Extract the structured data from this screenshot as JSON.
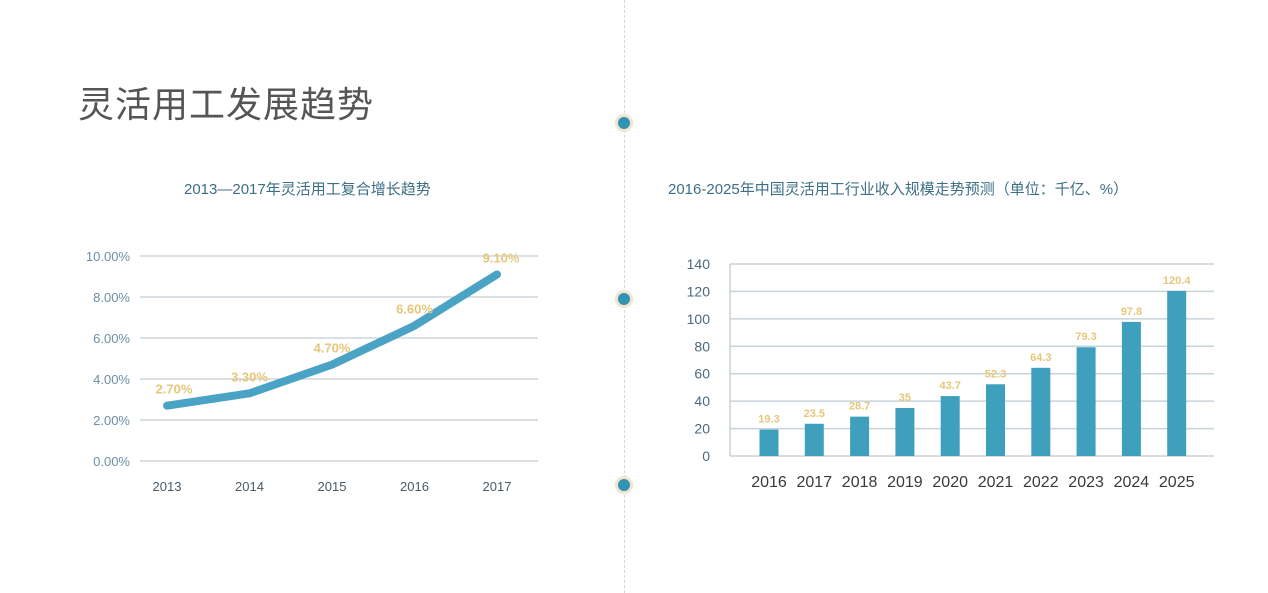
{
  "page": {
    "title": "灵活用工发展趋势"
  },
  "chart_data": [
    {
      "type": "line",
      "title": "2013—2017年灵活用工复合增长趋势",
      "categories": [
        "2013",
        "2014",
        "2015",
        "2016",
        "2017"
      ],
      "values": [
        2.7,
        3.3,
        4.7,
        6.6,
        9.1
      ],
      "data_labels": [
        "2.70%",
        "3.30%",
        "4.70%",
        "6.60%",
        "9.10%"
      ],
      "yticks": [
        "0.00%",
        "2.00%",
        "4.00%",
        "6.00%",
        "8.00%",
        "10.00%"
      ],
      "ylim": [
        0,
        10
      ],
      "grid": true,
      "colors": {
        "line": "#4aa3c4",
        "label": "#e6c77a",
        "grid": "#cfd6dc",
        "tick": "#6b8fa6"
      }
    },
    {
      "type": "bar",
      "title": "2016-2025年中国灵活用工行业收入规模走势预测（单位：千亿、%）",
      "categories": [
        "2016",
        "2017",
        "2018",
        "2019",
        "2020",
        "2021",
        "2022",
        "2023",
        "2024",
        "2025"
      ],
      "values": [
        19.3,
        23.5,
        28.7,
        35,
        43.7,
        52.3,
        64.3,
        79.3,
        97.8,
        120.4
      ],
      "data_labels": [
        "19.3",
        "23.5",
        "28.7",
        "35",
        "43.7",
        "52.3",
        "64.3",
        "79.3",
        "97.8",
        "120.4"
      ],
      "yticks": [
        "0",
        "20",
        "40",
        "60",
        "80",
        "100",
        "120",
        "140"
      ],
      "ylim": [
        0,
        140
      ],
      "grid": true,
      "colors": {
        "bar": "#3fa0bd",
        "label": "#e6c77a",
        "grid": "#c9d3da",
        "tick": "#4a6a7e"
      }
    }
  ]
}
